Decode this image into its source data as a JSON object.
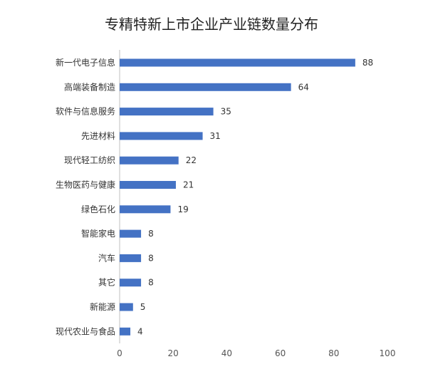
{
  "chart_data": {
    "type": "bar",
    "orientation": "horizontal",
    "title": "专精特新上市企业产业链数量分布",
    "categories": [
      "新一代电子信息",
      "高端装备制造",
      "软件与信息服务",
      "先进材料",
      "现代轻工纺织",
      "生物医药与健康",
      "绿色石化",
      "智能家电",
      "汽车",
      "其它",
      "新能源",
      "现代农业与食品"
    ],
    "values": [
      88,
      64,
      35,
      31,
      22,
      21,
      19,
      8,
      8,
      8,
      5,
      4
    ],
    "xlim": [
      0,
      100
    ],
    "xticks": [
      "0",
      "20",
      "40",
      "60",
      "80",
      "100"
    ],
    "grid": false,
    "legend": "none",
    "bar_color": "#4472C4"
  }
}
